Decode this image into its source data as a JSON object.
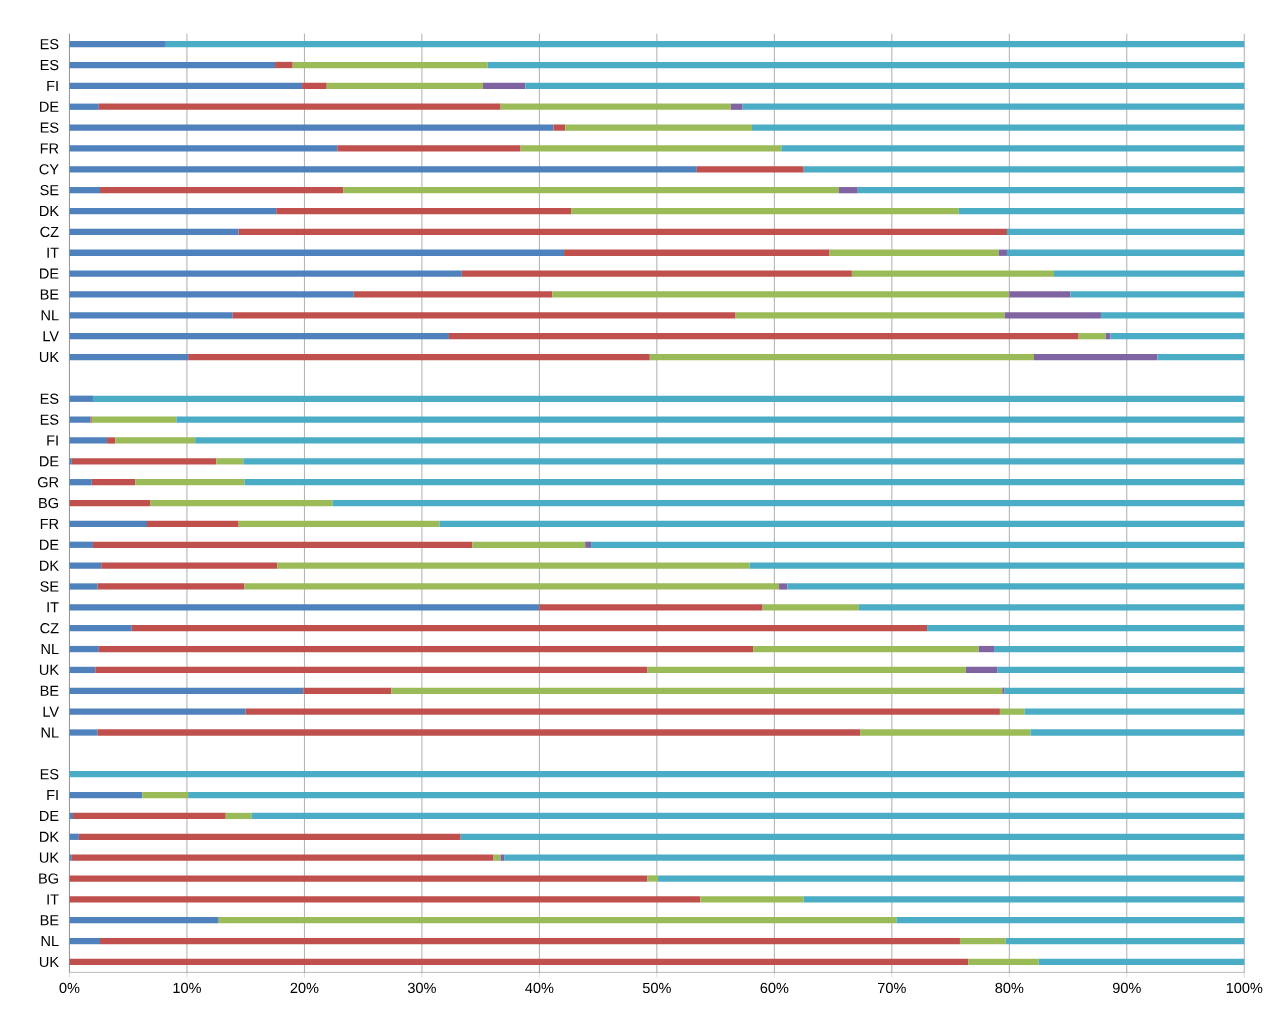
{
  "chart_data": {
    "type": "bar",
    "orientation": "horizontal",
    "stacked": true,
    "grid": "x",
    "categories": [
      "ES",
      "ES",
      "FI",
      "DE",
      "ES",
      "FR",
      "CY",
      "SE",
      "DK",
      "CZ",
      "IT",
      "DE",
      "BE",
      "NL",
      "LV",
      "UK",
      null,
      "ES",
      "ES",
      "FI",
      "DE",
      "GR",
      "BG",
      "FR",
      "DE",
      "DK",
      "SE",
      "IT",
      "CZ",
      "NL",
      "UK",
      "BE",
      "LV",
      "NL",
      null,
      "ES",
      "FI",
      "DE",
      "DK",
      "UK",
      "BG",
      "IT",
      "BE",
      "NL",
      "UK"
    ],
    "xlim": [
      0,
      100
    ],
    "xticks": [
      {
        "value": 0,
        "label": "0%"
      },
      {
        "value": 10,
        "label": "10%"
      },
      {
        "value": 20,
        "label": "20%"
      },
      {
        "value": 30,
        "label": "30%"
      },
      {
        "value": 40,
        "label": "40%"
      },
      {
        "value": 50,
        "label": "50%"
      },
      {
        "value": 60,
        "label": "60%"
      },
      {
        "value": 70,
        "label": "70%"
      },
      {
        "value": 80,
        "label": "80%"
      },
      {
        "value": 90,
        "label": "90%"
      },
      {
        "value": 100,
        "label": "100%"
      }
    ],
    "series": [
      {
        "color": "#4f81bd",
        "values": [
          8.2,
          17.5,
          19.8,
          2.5,
          41.2,
          22.8,
          53.4,
          2.6,
          17.6,
          14.4,
          42.1,
          33.4,
          24.2,
          13.9,
          32.3,
          10.1,
          null,
          2.0,
          1.8,
          3.2,
          0.2,
          1.9,
          0,
          6.6,
          2.0,
          2.7,
          2.4,
          40.0,
          5.3,
          2.5,
          2.2,
          19.9,
          15.0,
          2.4,
          null,
          0,
          6.2,
          0.3,
          0.8,
          0.2,
          0,
          0,
          12.7,
          2.6,
          0
        ]
      },
      {
        "color": "#c0504d",
        "values": [
          0,
          1.5,
          2.1,
          34.2,
          1.0,
          15.6,
          9.1,
          20.7,
          25.1,
          65.4,
          22.6,
          33.2,
          16.9,
          42.8,
          53.6,
          39.3,
          null,
          0,
          0.1,
          0.7,
          12.3,
          3.7,
          6.9,
          7.8,
          32.3,
          15.0,
          12.5,
          19.0,
          67.7,
          55.7,
          47.0,
          7.5,
          64.2,
          64.9,
          null,
          0,
          0,
          13.0,
          32.5,
          35.9,
          49.2,
          53.7,
          0,
          73.2,
          76.5
        ]
      },
      {
        "color": "#9bbb59",
        "values": [
          0,
          16.6,
          13.3,
          19.6,
          15.9,
          22.2,
          0,
          42.2,
          33.0,
          0,
          14.4,
          17.2,
          38.9,
          22.9,
          2.3,
          32.7,
          null,
          0,
          7.2,
          6.8,
          2.3,
          9.3,
          15.5,
          17.1,
          9.6,
          40.2,
          45.5,
          8.2,
          0,
          19.2,
          27.1,
          52.0,
          2.1,
          14.5,
          null,
          0,
          3.9,
          2.2,
          0,
          0.6,
          0.9,
          8.8,
          57.7,
          3.9,
          6.0
        ]
      },
      {
        "color": "#8064a2",
        "values": [
          0,
          0,
          3.6,
          1.0,
          0,
          0,
          0,
          1.6,
          0,
          0,
          0.7,
          0,
          5.2,
          8.2,
          0.4,
          10.5,
          null,
          0,
          0,
          0,
          0,
          0,
          0,
          0,
          0.5,
          0,
          0.7,
          0,
          0,
          1.3,
          2.7,
          0.2,
          0,
          0,
          null,
          0,
          0,
          0,
          0,
          0.3,
          0,
          0,
          0,
          0,
          0
        ]
      },
      {
        "color": "#4bacc6",
        "values": [
          91.8,
          64.4,
          61.2,
          42.7,
          41.9,
          39.4,
          37.5,
          32.9,
          24.3,
          20.2,
          20.2,
          16.2,
          14.8,
          12.2,
          11.4,
          7.4,
          null,
          98.0,
          90.9,
          89.3,
          85.2,
          85.1,
          77.6,
          68.5,
          55.6,
          42.1,
          38.9,
          32.8,
          27.0,
          21.3,
          21.0,
          20.4,
          18.7,
          18.2,
          null,
          100,
          89.9,
          84.5,
          66.7,
          63.0,
          49.9,
          37.5,
          29.6,
          20.3,
          17.5
        ]
      }
    ]
  }
}
